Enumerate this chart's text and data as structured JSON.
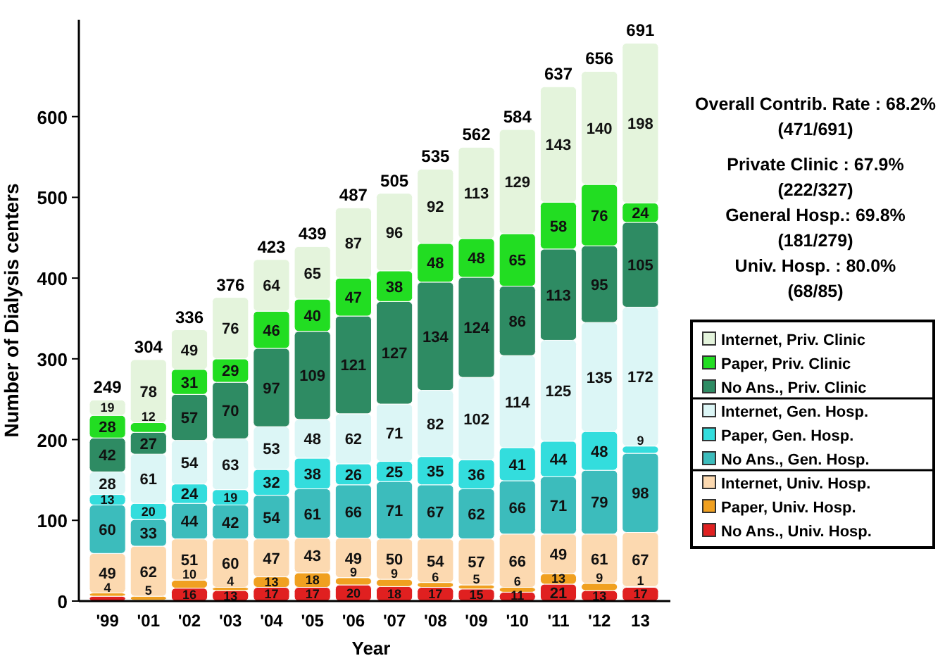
{
  "chart_data": {
    "type": "bar",
    "stacked": true,
    "xlabel": "Year",
    "ylabel": "Number of Dialysis centers",
    "categories": [
      "'99",
      "'01",
      "'02",
      "'03",
      "'04",
      "'05",
      "'06",
      "'07",
      "'08",
      "'09",
      "'10",
      "'11",
      "'12",
      "13"
    ],
    "series": [
      {
        "name": "No Ans., Univ. Hosp.",
        "color": "#e02020",
        "values": [
          6,
          1,
          16,
          13,
          17,
          17,
          20,
          18,
          17,
          15,
          11,
          21,
          13,
          17
        ],
        "value_labels": [
          null,
          null,
          "16",
          "13",
          "17",
          "17",
          "20",
          "18",
          "17",
          "15",
          "11",
          "21",
          "13",
          "17"
        ]
      },
      {
        "name": "Paper, Univ. Hosp.",
        "color": "#f0a020",
        "values": [
          4,
          5,
          10,
          4,
          13,
          18,
          9,
          9,
          6,
          5,
          6,
          13,
          9,
          1
        ],
        "value_labels": [
          "4",
          "5",
          "10",
          "4",
          "13",
          "18",
          "9",
          "9",
          "6",
          "5",
          "6",
          "13",
          "9",
          "1"
        ]
      },
      {
        "name": "Internet, Univ. Hosp.",
        "color": "#fcd9b0",
        "values": [
          49,
          62,
          51,
          60,
          47,
          43,
          49,
          50,
          54,
          57,
          66,
          49,
          61,
          67
        ],
        "value_labels": [
          "49",
          "62",
          "51",
          "60",
          "47",
          "43",
          "49",
          "50",
          "54",
          "57",
          "66",
          "49",
          "61",
          "67"
        ]
      },
      {
        "name": "No Ans., Gen. Hosp.",
        "color": "#3cbcbc",
        "values": [
          60,
          33,
          44,
          42,
          54,
          61,
          66,
          71,
          67,
          62,
          66,
          71,
          79,
          98
        ],
        "value_labels": [
          "60",
          "33",
          "44",
          "42",
          "54",
          "61",
          "66",
          "71",
          "67",
          "62",
          "66",
          "71",
          "79",
          "98"
        ]
      },
      {
        "name": "Paper, Gen. Hosp.",
        "color": "#33dddd",
        "values": [
          13,
          20,
          24,
          19,
          32,
          38,
          26,
          25,
          35,
          36,
          41,
          44,
          48,
          9
        ],
        "value_labels": [
          "13",
          "20",
          "24",
          "19",
          "32",
          "38",
          "26",
          "25",
          "35",
          "36",
          "41",
          "44",
          "48",
          "9"
        ]
      },
      {
        "name": "Internet, Gen. Hosp.",
        "color": "#dcf6f6",
        "values": [
          28,
          61,
          54,
          63,
          53,
          48,
          62,
          71,
          82,
          102,
          114,
          125,
          135,
          172
        ],
        "value_labels": [
          "28",
          "61",
          "54",
          "63",
          "53",
          "48",
          "62",
          "71",
          "82",
          "102",
          "114",
          "125",
          "135",
          "172"
        ]
      },
      {
        "name": "No Ans.,  Priv. Clinic",
        "color": "#2e8b63",
        "values": [
          42,
          27,
          57,
          70,
          97,
          109,
          121,
          127,
          134,
          124,
          86,
          113,
          95,
          105
        ],
        "value_labels": [
          "42",
          "27",
          "57",
          "70",
          "97",
          "109",
          "121",
          "127",
          "134",
          "124",
          "86",
          "113",
          "95",
          "105"
        ]
      },
      {
        "name": "Paper, Priv. Clinic",
        "color": "#22dd22",
        "values": [
          28,
          12,
          31,
          29,
          46,
          40,
          47,
          38,
          48,
          48,
          65,
          58,
          76,
          24
        ],
        "value_labels": [
          "28",
          "12",
          "31",
          "29",
          "46",
          "40",
          "47",
          "38",
          "48",
          "48",
          "65",
          "58",
          "76",
          "24"
        ]
      },
      {
        "name": "Internet, Priv. Clinic",
        "color": "#e4f4dc",
        "values": [
          19,
          78,
          49,
          76,
          64,
          65,
          87,
          96,
          92,
          113,
          129,
          143,
          140,
          198
        ],
        "value_labels": [
          "19",
          "78",
          "49",
          "76",
          "64",
          "65",
          "87",
          "96",
          "92",
          "113",
          "129",
          "143",
          "140",
          "198"
        ]
      }
    ],
    "totals": [
      "249",
      "304",
      "336",
      "376",
      "423",
      "439",
      "487",
      "505",
      "535",
      "562",
      "584",
      "637",
      "656",
      "691"
    ],
    "ylim": [
      0,
      720
    ],
    "yticks": [
      0,
      100,
      200,
      300,
      400,
      500,
      600
    ],
    "legend": "right",
    "annotations": [
      "Overall Contrib. Rate : 68.2%",
      "(471/691)",
      "Private Clinic : 67.9%",
      "(222/327)",
      "General Hosp.: 69.8%",
      "(181/279)",
      "Univ. Hosp. : 80.0%",
      "(68/85)"
    ]
  }
}
